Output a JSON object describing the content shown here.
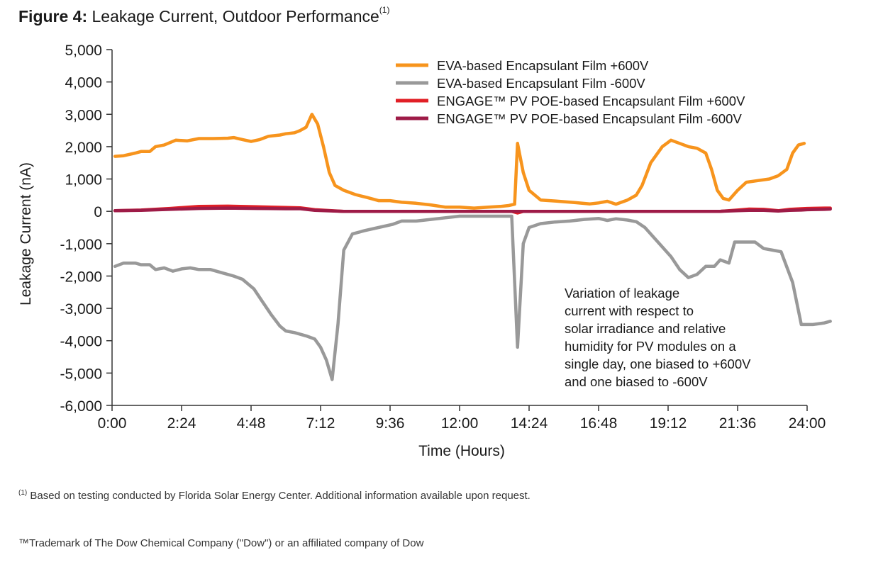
{
  "figure": {
    "label": "Figure 4:",
    "title": "Leakage Current, Outdoor Performance",
    "title_ref": "(1)"
  },
  "chart_data": {
    "type": "line",
    "xlabel": "Time (Hours)",
    "ylabel": "Leakage Current (nA)",
    "xlim": [
      0,
      24
    ],
    "ylim": [
      -6000,
      5000
    ],
    "x_ticks": [
      0,
      2.4,
      4.8,
      7.2,
      9.6,
      12,
      14.4,
      16.8,
      19.2,
      21.6,
      24
    ],
    "x_tick_labels": [
      "0:00",
      "2:24",
      "4:48",
      "7:12",
      "9:36",
      "12:00",
      "14:24",
      "16:48",
      "19:12",
      "21:36",
      "24:00"
    ],
    "y_ticks": [
      5000,
      4000,
      3000,
      2000,
      1000,
      0,
      -1000,
      -2000,
      -3000,
      -4000,
      -5000,
      -6000
    ],
    "y_tick_labels": [
      "5,000",
      "4,000",
      "3,000",
      "2,000",
      "1,000",
      "0",
      "-1,000",
      "-2,000",
      "-3,000",
      "-4,000",
      "-5,000",
      "-6,000"
    ],
    "grid": false,
    "legend_position": "top-right",
    "annotation": [
      "Variation of leakage",
      "current with respect to",
      "solar irradiance and relative",
      "humidity for PV modules on a",
      "single day, one biased to +600V",
      "and one biased to -600V"
    ],
    "series": [
      {
        "name": "EVA-based Encapsulant Film +600V",
        "color": "#f7941d",
        "points": [
          [
            0.1,
            1700
          ],
          [
            0.4,
            1720
          ],
          [
            0.8,
            1800
          ],
          [
            1.0,
            1850
          ],
          [
            1.3,
            1850
          ],
          [
            1.5,
            2000
          ],
          [
            1.8,
            2050
          ],
          [
            2.2,
            2200
          ],
          [
            2.6,
            2180
          ],
          [
            3.0,
            2250
          ],
          [
            3.5,
            2250
          ],
          [
            4.0,
            2260
          ],
          [
            4.2,
            2280
          ],
          [
            4.5,
            2220
          ],
          [
            4.8,
            2160
          ],
          [
            5.1,
            2220
          ],
          [
            5.4,
            2320
          ],
          [
            5.8,
            2360
          ],
          [
            6.0,
            2400
          ],
          [
            6.3,
            2430
          ],
          [
            6.5,
            2500
          ],
          [
            6.7,
            2600
          ],
          [
            6.9,
            3000
          ],
          [
            7.1,
            2700
          ],
          [
            7.3,
            2000
          ],
          [
            7.5,
            1200
          ],
          [
            7.7,
            800
          ],
          [
            8.0,
            650
          ],
          [
            8.4,
            520
          ],
          [
            8.8,
            430
          ],
          [
            9.2,
            330
          ],
          [
            9.6,
            330
          ],
          [
            10.0,
            280
          ],
          [
            10.5,
            250
          ],
          [
            11.0,
            200
          ],
          [
            11.5,
            130
          ],
          [
            12.0,
            130
          ],
          [
            12.5,
            100
          ],
          [
            13.0,
            130
          ],
          [
            13.4,
            150
          ],
          [
            13.7,
            180
          ],
          [
            13.9,
            220
          ],
          [
            14.0,
            2100
          ],
          [
            14.2,
            1200
          ],
          [
            14.4,
            650
          ],
          [
            14.8,
            350
          ],
          [
            15.3,
            320
          ],
          [
            16.0,
            270
          ],
          [
            16.5,
            230
          ],
          [
            16.8,
            260
          ],
          [
            17.1,
            310
          ],
          [
            17.4,
            220
          ],
          [
            17.8,
            350
          ],
          [
            18.1,
            500
          ],
          [
            18.3,
            800
          ],
          [
            18.6,
            1500
          ],
          [
            19.0,
            2000
          ],
          [
            19.3,
            2200
          ],
          [
            19.6,
            2100
          ],
          [
            19.9,
            2000
          ],
          [
            20.2,
            1950
          ],
          [
            20.5,
            1800
          ],
          [
            20.7,
            1300
          ],
          [
            20.9,
            650
          ],
          [
            21.1,
            400
          ],
          [
            21.3,
            350
          ],
          [
            21.6,
            650
          ],
          [
            21.9,
            900
          ],
          [
            22.3,
            950
          ],
          [
            22.7,
            1000
          ],
          [
            23.0,
            1100
          ],
          [
            23.3,
            1300
          ],
          [
            23.5,
            1800
          ],
          [
            23.7,
            2050
          ],
          [
            23.9,
            2100
          ]
        ]
      },
      {
        "name": "EVA-based Encapsulant Film -600V",
        "color": "#999999",
        "points": [
          [
            0.1,
            -1700
          ],
          [
            0.4,
            -1600
          ],
          [
            0.8,
            -1600
          ],
          [
            1.0,
            -1650
          ],
          [
            1.3,
            -1650
          ],
          [
            1.5,
            -1800
          ],
          [
            1.8,
            -1750
          ],
          [
            2.1,
            -1850
          ],
          [
            2.4,
            -1780
          ],
          [
            2.7,
            -1750
          ],
          [
            3.0,
            -1800
          ],
          [
            3.4,
            -1800
          ],
          [
            3.8,
            -1900
          ],
          [
            4.2,
            -2000
          ],
          [
            4.5,
            -2100
          ],
          [
            4.9,
            -2400
          ],
          [
            5.2,
            -2800
          ],
          [
            5.5,
            -3200
          ],
          [
            5.8,
            -3550
          ],
          [
            6.0,
            -3700
          ],
          [
            6.3,
            -3750
          ],
          [
            6.7,
            -3850
          ],
          [
            7.0,
            -3950
          ],
          [
            7.2,
            -4200
          ],
          [
            7.4,
            -4600
          ],
          [
            7.6,
            -5200
          ],
          [
            7.8,
            -3500
          ],
          [
            8.0,
            -1200
          ],
          [
            8.3,
            -700
          ],
          [
            8.7,
            -600
          ],
          [
            9.2,
            -500
          ],
          [
            9.7,
            -400
          ],
          [
            10.0,
            -300
          ],
          [
            10.5,
            -300
          ],
          [
            11.0,
            -250
          ],
          [
            11.5,
            -200
          ],
          [
            12.0,
            -150
          ],
          [
            13.0,
            -150
          ],
          [
            13.5,
            -150
          ],
          [
            13.8,
            -150
          ],
          [
            14.0,
            -4200
          ],
          [
            14.2,
            -1000
          ],
          [
            14.4,
            -500
          ],
          [
            14.8,
            -380
          ],
          [
            15.3,
            -330
          ],
          [
            15.8,
            -300
          ],
          [
            16.3,
            -250
          ],
          [
            16.8,
            -220
          ],
          [
            17.1,
            -280
          ],
          [
            17.4,
            -230
          ],
          [
            17.8,
            -270
          ],
          [
            18.1,
            -320
          ],
          [
            18.4,
            -500
          ],
          [
            18.7,
            -800
          ],
          [
            19.0,
            -1100
          ],
          [
            19.3,
            -1400
          ],
          [
            19.6,
            -1800
          ],
          [
            19.9,
            -2050
          ],
          [
            20.2,
            -1950
          ],
          [
            20.5,
            -1700
          ],
          [
            20.8,
            -1700
          ],
          [
            21.0,
            -1500
          ],
          [
            21.3,
            -1600
          ],
          [
            21.5,
            -950
          ],
          [
            21.9,
            -950
          ],
          [
            22.2,
            -950
          ],
          [
            22.5,
            -1150
          ],
          [
            22.8,
            -1200
          ],
          [
            23.1,
            -1250
          ],
          [
            23.5,
            -2200
          ],
          [
            23.8,
            -3500
          ],
          [
            24.2,
            -3500
          ],
          [
            24.6,
            -3450
          ],
          [
            24.8,
            -3400
          ]
        ]
      },
      {
        "name": "ENGAGE™ PV POE-based Encapsulant Film +600V",
        "color": "#e11f26",
        "points": [
          [
            0.1,
            20
          ],
          [
            1.0,
            40
          ],
          [
            2.0,
            90
          ],
          [
            3.0,
            150
          ],
          [
            4.0,
            160
          ],
          [
            5.0,
            140
          ],
          [
            6.0,
            120
          ],
          [
            6.5,
            110
          ],
          [
            7.0,
            50
          ],
          [
            8.0,
            0
          ],
          [
            12.0,
            0
          ],
          [
            13.8,
            0
          ],
          [
            14.0,
            -50
          ],
          [
            14.2,
            0
          ],
          [
            18.0,
            0
          ],
          [
            21.0,
            0
          ],
          [
            21.6,
            40
          ],
          [
            22.0,
            70
          ],
          [
            22.5,
            60
          ],
          [
            23.0,
            20
          ],
          [
            23.4,
            60
          ],
          [
            23.8,
            80
          ],
          [
            24.0,
            90
          ],
          [
            24.6,
            100
          ],
          [
            24.8,
            100
          ]
        ]
      },
      {
        "name": "ENGAGE™ PV POE-based Encapsulant Film -600V",
        "color": "#9e1b47",
        "points": [
          [
            0.1,
            20
          ],
          [
            1.0,
            30
          ],
          [
            2.0,
            60
          ],
          [
            3.0,
            90
          ],
          [
            4.0,
            100
          ],
          [
            5.0,
            90
          ],
          [
            6.0,
            80
          ],
          [
            6.5,
            80
          ],
          [
            7.0,
            30
          ],
          [
            8.0,
            0
          ],
          [
            12.0,
            0
          ],
          [
            14.0,
            0
          ],
          [
            18.0,
            0
          ],
          [
            21.0,
            0
          ],
          [
            21.6,
            20
          ],
          [
            22.0,
            30
          ],
          [
            22.5,
            30
          ],
          [
            23.0,
            10
          ],
          [
            23.4,
            30
          ],
          [
            23.8,
            40
          ],
          [
            24.0,
            50
          ],
          [
            24.6,
            60
          ],
          [
            24.8,
            70
          ]
        ]
      }
    ]
  },
  "footnotes": {
    "ref_mark": "(1)",
    "source": " Based on testing conducted by Florida Solar Energy Center. Additional information available upon request.",
    "trademark": "™Trademark of The Dow Chemical Company (\"Dow\") or an affiliated company of Dow"
  }
}
